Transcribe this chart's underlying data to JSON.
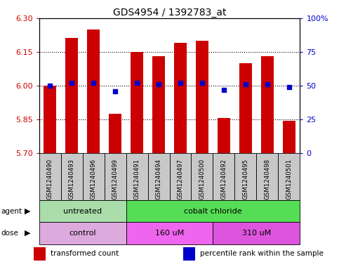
{
  "title": "GDS4954 / 1392783_at",
  "samples": [
    "GSM1240490",
    "GSM1240493",
    "GSM1240496",
    "GSM1240499",
    "GSM1240491",
    "GSM1240494",
    "GSM1240497",
    "GSM1240500",
    "GSM1240492",
    "GSM1240495",
    "GSM1240498",
    "GSM1240501"
  ],
  "bar_values": [
    6.0,
    6.21,
    6.25,
    5.875,
    6.15,
    6.13,
    6.19,
    6.2,
    5.855,
    6.1,
    6.13,
    5.845
  ],
  "blue_values": [
    50,
    52,
    52,
    46,
    52,
    51,
    52,
    52,
    47,
    51,
    51,
    49
  ],
  "ylim": [
    5.7,
    6.3
  ],
  "yticks": [
    5.7,
    5.85,
    6.0,
    6.15,
    6.3
  ],
  "y2ticks": [
    0,
    25,
    50,
    75,
    100
  ],
  "y2labels": [
    "0",
    "25",
    "50",
    "75",
    "100%"
  ],
  "hlines": [
    5.85,
    6.0,
    6.15
  ],
  "bar_color": "#cc0000",
  "blue_color": "#0000cc",
  "agent_groups": [
    {
      "label": "untreated",
      "start": 0,
      "end": 4,
      "color": "#aaddaa"
    },
    {
      "label": "cobalt chloride",
      "start": 4,
      "end": 12,
      "color": "#55dd55"
    }
  ],
  "dose_groups": [
    {
      "label": "control",
      "start": 0,
      "end": 4,
      "color": "#ddaadd"
    },
    {
      "label": "160 uM",
      "start": 4,
      "end": 8,
      "color": "#ee66ee"
    },
    {
      "label": "310 uM",
      "start": 8,
      "end": 12,
      "color": "#dd55dd"
    }
  ],
  "legend_items": [
    {
      "color": "#cc0000",
      "label": "transformed count"
    },
    {
      "color": "#0000cc",
      "label": "percentile rank within the sample"
    }
  ],
  "sample_box_color": "#c8c8c8",
  "bar_width": 0.6,
  "label_fontsize": 7,
  "title_fontsize": 10
}
